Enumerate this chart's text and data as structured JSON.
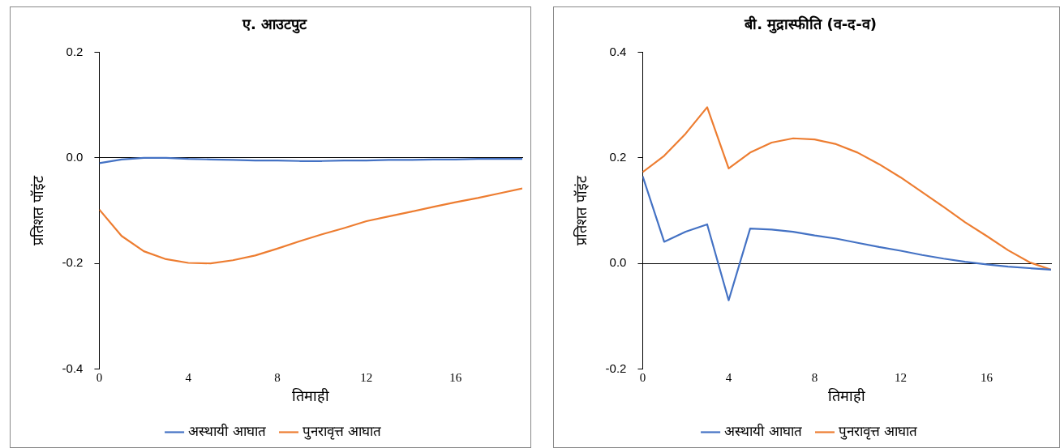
{
  "chart_data": [
    {
      "type": "line",
      "title": "ए. आउटपुट",
      "xlabel": "तिमाही",
      "ylabel": "प्रतिशत पॉइंट",
      "x": [
        0,
        1,
        2,
        3,
        4,
        5,
        6,
        7,
        8,
        9,
        10,
        11,
        12,
        13,
        14,
        15,
        16,
        17,
        18,
        19
      ],
      "xlim": [
        0,
        19
      ],
      "xticks": [
        0,
        4,
        8,
        12,
        16
      ],
      "ylim": [
        -0.4,
        0.2
      ],
      "yticks": [
        {
          "value": -0.4,
          "label": "-0.4"
        },
        {
          "value": -0.2,
          "label": "-0.2"
        },
        {
          "value": 0,
          "label": "0.0"
        },
        {
          "value": 0.2,
          "label": "0.2"
        }
      ],
      "legend": "bottom",
      "series": [
        {
          "name": "अस्थायी आघात",
          "color": "#4472c4",
          "values": [
            -0.01,
            -0.003,
            0,
            0,
            -0.002,
            -0.003,
            -0.004,
            -0.005,
            -0.005,
            -0.006,
            -0.006,
            -0.005,
            -0.005,
            -0.004,
            -0.004,
            -0.003,
            -0.003,
            -0.002,
            -0.002,
            -0.002
          ]
        },
        {
          "name": "पुनरावृत्त आघात",
          "color": "#ed7d31",
          "values": [
            -0.098,
            -0.148,
            -0.177,
            -0.192,
            -0.199,
            -0.2,
            -0.194,
            -0.185,
            -0.172,
            -0.158,
            -0.145,
            -0.133,
            -0.12,
            -0.111,
            -0.102,
            -0.093,
            -0.084,
            -0.076,
            -0.067,
            -0.058
          ]
        }
      ]
    },
    {
      "type": "line",
      "title": "बी. मुद्रास्फीति (व-द-व)",
      "xlabel": "तिमाही",
      "ylabel": "प्रतिशत पॉइंट",
      "x": [
        0,
        1,
        2,
        3,
        4,
        5,
        6,
        7,
        8,
        9,
        10,
        11,
        12,
        13,
        14,
        15,
        16,
        17,
        18,
        19
      ],
      "xlim": [
        0,
        19
      ],
      "xticks": [
        0,
        4,
        8,
        12,
        16
      ],
      "ylim": [
        -0.2,
        0.4
      ],
      "yticks": [
        {
          "value": -0.2,
          "label": "-0.2"
        },
        {
          "value": 0,
          "label": "0.0"
        },
        {
          "value": 0.2,
          "label": "0.2"
        },
        {
          "value": 0.4,
          "label": "0.4"
        }
      ],
      "legend": "bottom",
      "series": [
        {
          "name": "अस्थायी आघात",
          "color": "#4472c4",
          "values": [
            0.165,
            0.041,
            0.06,
            0.074,
            -0.07,
            0.066,
            0.064,
            0.06,
            0.053,
            0.047,
            0.039,
            0.031,
            0.024,
            0.016,
            0.009,
            0.003,
            -0.002,
            -0.006,
            -0.009,
            -0.012
          ]
        },
        {
          "name": "पुनरावृत्त आघात",
          "color": "#ed7d31",
          "values": [
            0.173,
            0.204,
            0.246,
            0.296,
            0.18,
            0.21,
            0.229,
            0.237,
            0.235,
            0.226,
            0.21,
            0.188,
            0.163,
            0.135,
            0.107,
            0.078,
            0.052,
            0.025,
            0.002,
            -0.012
          ]
        }
      ]
    }
  ]
}
